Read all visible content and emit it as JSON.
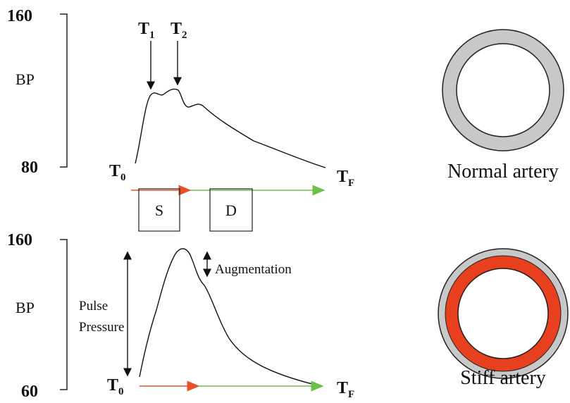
{
  "top_panel": {
    "y_top": "160",
    "y_bottom": "80",
    "y_label": "BP",
    "t1": {
      "base": "T",
      "sub": "1"
    },
    "t2": {
      "base": "T",
      "sub": "2"
    },
    "t0": {
      "base": "T",
      "sub": "0"
    },
    "tf": {
      "base": "T",
      "sub": "F"
    },
    "systole": "S",
    "diastole": "D"
  },
  "bottom_panel": {
    "y_top": "160",
    "y_bottom": "60",
    "y_label": "BP",
    "pulse_pressure": [
      "Pulse",
      "Pressure"
    ],
    "augmentation": "Augmentation",
    "t0": {
      "base": "T",
      "sub": "0"
    },
    "tf": {
      "base": "T",
      "sub": "F"
    }
  },
  "arteries": {
    "normal": "Normal artery",
    "stiff": "Stiff artery"
  }
}
